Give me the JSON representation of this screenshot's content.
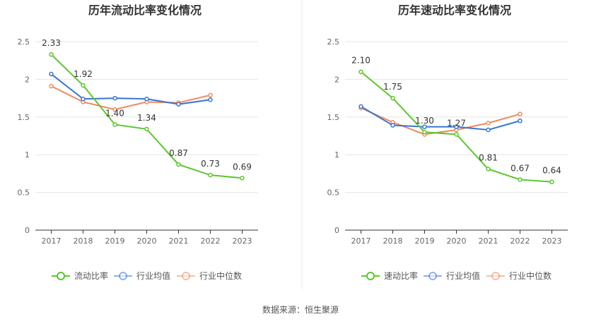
{
  "footer": {
    "source": "数据来源：恒生聚源"
  },
  "chart_data": [
    {
      "type": "line",
      "title": "历年流动比率变化情况",
      "categories": [
        "2017",
        "2018",
        "2019",
        "2020",
        "2021",
        "2022",
        "2023"
      ],
      "ylim": [
        0,
        2.5
      ],
      "yticks": [
        "0",
        "0.5",
        "1",
        "1.5",
        "2",
        "2.5"
      ],
      "grid": true,
      "legend_position": "bottom",
      "series": [
        {
          "name": "流动比率",
          "color": "#5bc72d",
          "values": [
            2.33,
            1.92,
            1.4,
            1.34,
            0.87,
            0.73,
            0.69
          ],
          "labels": [
            "2.33",
            "1.92",
            "1.40",
            "1.34",
            "0.87",
            "0.73",
            "0.69"
          ]
        },
        {
          "name": "行业均值",
          "color": "#3a75d4",
          "values": [
            2.07,
            1.74,
            1.75,
            1.74,
            1.67,
            1.73,
            null
          ]
        },
        {
          "name": "行业中位数",
          "color": "#f08a5d",
          "values": [
            1.91,
            1.7,
            1.6,
            1.7,
            1.69,
            1.79,
            null
          ]
        }
      ]
    },
    {
      "type": "line",
      "title": "历年速动比率变化情况",
      "categories": [
        "2017",
        "2018",
        "2019",
        "2020",
        "2021",
        "2022",
        "2023"
      ],
      "ylim": [
        0,
        2.5
      ],
      "yticks": [
        "0",
        "0.5",
        "1",
        "1.5",
        "2",
        "2.5"
      ],
      "grid": true,
      "legend_position": "bottom",
      "series": [
        {
          "name": "速动比率",
          "color": "#5bc72d",
          "values": [
            2.1,
            1.75,
            1.3,
            1.27,
            0.81,
            0.67,
            0.64
          ],
          "labels": [
            "2.10",
            "1.75",
            "1.30",
            "1.27",
            "0.81",
            "0.67",
            "0.64"
          ]
        },
        {
          "name": "行业均值",
          "color": "#3a75d4",
          "values": [
            1.64,
            1.39,
            1.37,
            1.37,
            1.33,
            1.45,
            null
          ]
        },
        {
          "name": "行业中位数",
          "color": "#f08a5d",
          "values": [
            1.62,
            1.43,
            1.27,
            1.33,
            1.42,
            1.54,
            null
          ]
        }
      ]
    }
  ]
}
